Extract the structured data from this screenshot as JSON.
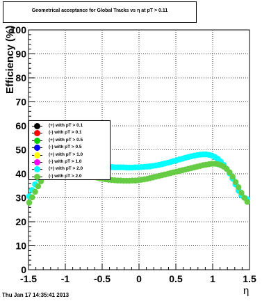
{
  "title": "Geometrical acceptance for Global Tracks vs   η at pT > 0.11",
  "datestamp": "Thu Jan 17 14:35:41 2013",
  "chart_data": {
    "type": "scatter",
    "title": "Geometrical acceptance for Global Tracks vs   η at pT > 0.11",
    "xlabel": "η",
    "ylabel": "Efficiency (%)",
    "xlim": [
      -1.5,
      1.5
    ],
    "ylim": [
      0,
      100
    ],
    "xticks": [
      "-1.5",
      "-1",
      "-0.5",
      "0",
      "0.5",
      "1",
      "1.5"
    ],
    "yticks": [
      "0",
      "10",
      "20",
      "30",
      "40",
      "50",
      "60",
      "70",
      "80",
      "90",
      "100"
    ],
    "grid": true,
    "legend_position": "left",
    "legend": [
      {
        "label": "(+) with pT > 0.1",
        "color": "#000000"
      },
      {
        "label": "(-) with pT > 0.1",
        "color": "#ff0000"
      },
      {
        "label": "(+) with pT > 0.5",
        "color": "#00cc00"
      },
      {
        "label": "(-) with pT > 0.5",
        "color": "#0000ff"
      },
      {
        "label": "(+) with pT > 1.0",
        "color": "#ffff00"
      },
      {
        "label": "(-) with pT > 1.0",
        "color": "#ff00ff"
      },
      {
        "label": "(+) with pT > 2.0",
        "color": "#00ffff"
      },
      {
        "label": "(-) with pT > 2.0",
        "color": "#66cc44"
      }
    ],
    "series": [
      {
        "name": "(+) with pT > 2.0",
        "color": "#00ffff",
        "x": [
          -1.49,
          -1.45,
          -1.41,
          -1.37,
          -1.33,
          -1.29,
          -1.25,
          -1.21,
          -1.17,
          -1.13,
          -1.09,
          -1.05,
          -1.01,
          -0.97,
          -0.93,
          -0.89,
          -0.85,
          -0.81,
          -0.77,
          -0.73,
          -0.69,
          -0.65,
          -0.61,
          -0.57,
          -0.53,
          -0.49,
          -0.45,
          -0.41,
          -0.37,
          -0.33,
          -0.29,
          -0.25,
          -0.21,
          -0.17,
          -0.13,
          -0.09,
          -0.05,
          -0.01,
          0.03,
          0.07,
          0.11,
          0.15,
          0.19,
          0.23,
          0.27,
          0.31,
          0.35,
          0.39,
          0.43,
          0.47,
          0.51,
          0.55,
          0.59,
          0.63,
          0.67,
          0.71,
          0.75,
          0.79,
          0.83,
          0.87,
          0.91,
          0.95,
          0.99,
          1.03,
          1.07,
          1.11,
          1.15,
          1.19,
          1.23,
          1.27,
          1.31,
          1.35,
          1.39,
          1.43,
          1.47
        ],
        "y": [
          30.6,
          33.2,
          35.6,
          38.0,
          40.0,
          41.6,
          42.7,
          43.5,
          44.0,
          44.3,
          44.4,
          44.3,
          44.2,
          44.1,
          44.0,
          43.9,
          43.8,
          43.7,
          43.6,
          43.5,
          43.4,
          43.3,
          43.2,
          43.1,
          43.0,
          42.9,
          42.9,
          42.8,
          42.8,
          42.7,
          42.7,
          42.7,
          42.7,
          42.6,
          42.6,
          42.6,
          42.7,
          42.7,
          42.8,
          42.9,
          43.0,
          43.1,
          43.3,
          43.5,
          43.7,
          44.0,
          44.3,
          44.6,
          44.9,
          45.3,
          45.6,
          46.0,
          46.3,
          46.7,
          47.0,
          47.3,
          47.6,
          47.8,
          48.0,
          48.1,
          48.1,
          47.9,
          47.6,
          47.0,
          46.2,
          45.1,
          43.7,
          42.1,
          40.2,
          38.0,
          35.6,
          33.0,
          31.0,
          30.0,
          29.4
        ]
      },
      {
        "name": "(-) with pT > 2.0",
        "color": "#66cc44",
        "x": [
          -1.49,
          -1.45,
          -1.41,
          -1.37,
          -1.33,
          -1.29,
          -1.25,
          -1.21,
          -1.17,
          -1.13,
          -1.09,
          -1.05,
          -1.01,
          -0.97,
          -0.93,
          -0.89,
          -0.85,
          -0.81,
          -0.77,
          -0.73,
          -0.69,
          -0.65,
          -0.61,
          -0.57,
          -0.53,
          -0.49,
          -0.45,
          -0.41,
          -0.37,
          -0.33,
          -0.29,
          -0.25,
          -0.21,
          -0.17,
          -0.13,
          -0.09,
          -0.05,
          -0.01,
          0.03,
          0.07,
          0.11,
          0.15,
          0.19,
          0.23,
          0.27,
          0.31,
          0.35,
          0.39,
          0.43,
          0.47,
          0.51,
          0.55,
          0.59,
          0.63,
          0.67,
          0.71,
          0.75,
          0.79,
          0.83,
          0.87,
          0.91,
          0.95,
          0.99,
          1.03,
          1.07,
          1.11,
          1.15,
          1.19,
          1.23,
          1.27,
          1.31,
          1.35,
          1.39,
          1.43,
          1.47
        ],
        "y": [
          28.0,
          30.2,
          32.5,
          34.8,
          36.9,
          38.6,
          40.0,
          41.0,
          41.7,
          42.1,
          42.3,
          42.3,
          42.2,
          42.0,
          41.7,
          41.3,
          40.9,
          40.5,
          40.1,
          39.7,
          39.3,
          39.0,
          38.7,
          38.4,
          38.1,
          37.9,
          37.7,
          37.5,
          37.4,
          37.3,
          37.2,
          37.2,
          37.1,
          37.1,
          37.1,
          37.2,
          37.2,
          37.3,
          37.5,
          37.7,
          37.9,
          38.2,
          38.5,
          38.8,
          39.1,
          39.4,
          39.7,
          40.0,
          40.3,
          40.6,
          40.9,
          41.2,
          41.5,
          41.8,
          42.1,
          42.4,
          42.7,
          43.0,
          43.3,
          43.6,
          43.8,
          44.0,
          44.2,
          44.2,
          44.0,
          43.6,
          43.0,
          42.0,
          40.6,
          38.8,
          36.6,
          34.4,
          32.1,
          30.0,
          28.3
        ]
      }
    ]
  }
}
